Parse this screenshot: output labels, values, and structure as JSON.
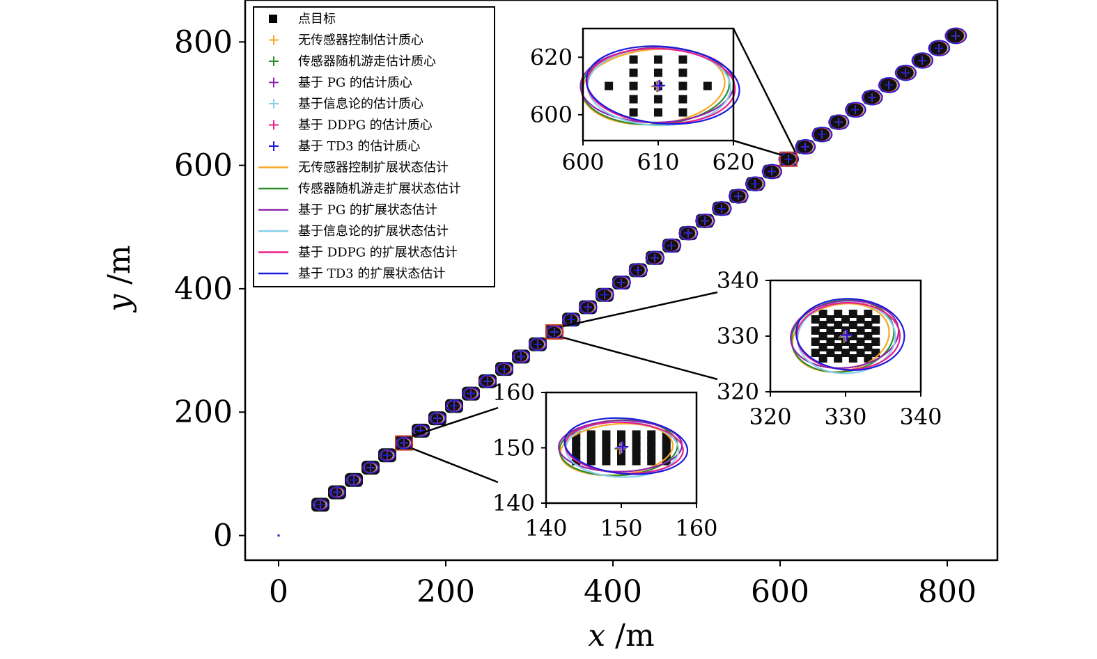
{
  "chart_data": {
    "type": "scatter",
    "xlabel": "x /m",
    "ylabel": "y /m",
    "xlim": [
      -40,
      860
    ],
    "ylim": [
      -40,
      868
    ],
    "x_ticks": [
      0,
      200,
      400,
      600,
      800
    ],
    "y_ticks": [
      0,
      200,
      400,
      600,
      800
    ],
    "origin_point": [
      0,
      0
    ],
    "legend_location": "upper-left",
    "legend": [
      {
        "label": "点目标",
        "marker": "square",
        "color": "#000000"
      },
      {
        "label": "无传感器控制估计质心",
        "marker": "plus",
        "color": "#f5a623"
      },
      {
        "label": "传感器随机游走估计质心",
        "marker": "plus",
        "color": "#2e8b2e"
      },
      {
        "label": "基于 PG 的估计质心",
        "marker": "plus",
        "color": "#8e24aa"
      },
      {
        "label": "基于信息论的估计质心",
        "marker": "plus",
        "color": "#87ceeb"
      },
      {
        "label": "基于 DDPG 的估计质心",
        "marker": "plus",
        "color": "#e91e8c"
      },
      {
        "label": "基于 TD3 的估计质心",
        "marker": "plus",
        "color": "#1a1adb"
      },
      {
        "label": "无传感器控制扩展状态估计",
        "marker": "line",
        "color": "#f5a623"
      },
      {
        "label": "传感器随机游走扩展状态估计",
        "marker": "line",
        "color": "#2e8b2e"
      },
      {
        "label": "基于 PG 的扩展状态估计",
        "marker": "line",
        "color": "#8e24aa"
      },
      {
        "label": "基于信息论的扩展状态估计",
        "marker": "line",
        "color": "#87ceeb"
      },
      {
        "label": "基于 DDPG 的扩展状态估计",
        "marker": "line",
        "color": "#e91e8c"
      },
      {
        "label": "基于 TD3 的扩展状态估计",
        "marker": "line",
        "color": "#1a1adb"
      }
    ],
    "centroids_xy": [
      [
        50,
        50
      ],
      [
        70,
        70
      ],
      [
        90,
        90
      ],
      [
        110,
        110
      ],
      [
        130,
        130
      ],
      [
        150,
        150
      ],
      [
        170,
        170
      ],
      [
        190,
        190
      ],
      [
        210,
        210
      ],
      [
        230,
        230
      ],
      [
        250,
        250
      ],
      [
        270,
        270
      ],
      [
        290,
        290
      ],
      [
        310,
        310
      ],
      [
        330,
        330
      ],
      [
        350,
        350
      ],
      [
        370,
        370
      ],
      [
        390,
        390
      ],
      [
        410,
        410
      ],
      [
        430,
        430
      ],
      [
        450,
        450
      ],
      [
        470,
        470
      ],
      [
        490,
        490
      ],
      [
        510,
        510
      ],
      [
        530,
        530
      ],
      [
        550,
        550
      ],
      [
        570,
        570
      ],
      [
        590,
        590
      ],
      [
        610,
        610
      ],
      [
        630,
        630
      ],
      [
        650,
        650
      ],
      [
        670,
        670
      ],
      [
        690,
        690
      ],
      [
        710,
        710
      ],
      [
        730,
        730
      ],
      [
        750,
        750
      ],
      [
        770,
        770
      ],
      [
        790,
        790
      ],
      [
        810,
        810
      ]
    ],
    "zoom_insets": [
      {
        "center": [
          610,
          610
        ],
        "xlim": [
          600,
          620
        ],
        "ylim": [
          591,
          630
        ],
        "x_ticks": [
          600,
          610,
          620
        ],
        "y_ticks": [
          600,
          620
        ]
      },
      {
        "center": [
          330,
          330
        ],
        "xlim": [
          320,
          340
        ],
        "ylim": [
          320,
          340
        ],
        "x_ticks": [
          320,
          330,
          340
        ],
        "y_ticks": [
          320,
          330,
          340
        ]
      },
      {
        "center": [
          150,
          150
        ],
        "xlim": [
          140,
          160
        ],
        "ylim": [
          140,
          160
        ],
        "x_ticks": [
          140,
          150,
          160
        ],
        "y_ticks": [
          140,
          150,
          160
        ]
      }
    ]
  },
  "labels": {
    "xlabel_var": "x",
    "xlabel_unit": " /m",
    "ylabel_var": "y",
    "ylabel_unit": " /m"
  }
}
